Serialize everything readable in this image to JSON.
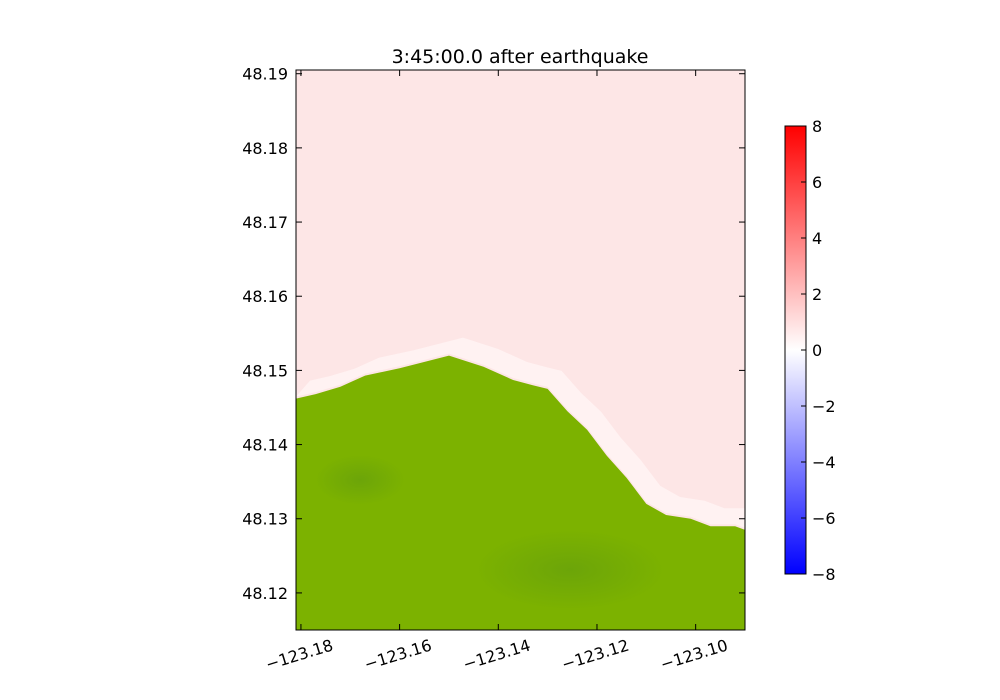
{
  "chart_data": {
    "type": "heatmap",
    "title": "3:45:00.0 after earthquake",
    "xlabel": "",
    "ylabel": "",
    "xlim": [
      -123.181,
      -123.09
    ],
    "ylim": [
      48.115,
      48.1905
    ],
    "x_ticks": [
      -123.18,
      -123.16,
      -123.14,
      -123.12,
      -123.1
    ],
    "x_tick_labels": [
      "−123.18",
      "−123.16",
      "−123.14",
      "−123.12",
      "−123.10"
    ],
    "y_ticks": [
      48.12,
      48.13,
      48.14,
      48.15,
      48.16,
      48.17,
      48.18,
      48.19
    ],
    "y_tick_labels": [
      "48.12",
      "48.13",
      "48.14",
      "48.15",
      "48.16",
      "48.17",
      "48.18",
      "48.19"
    ],
    "colorbar": {
      "min": -8,
      "max": 8,
      "ticks": [
        8,
        6,
        4,
        2,
        0,
        -2,
        -4,
        -6,
        -8
      ],
      "tick_labels": [
        "8",
        "6",
        "4",
        "2",
        "0",
        "−2",
        "−4",
        "−6",
        "−8"
      ],
      "colormap": [
        "#0000ff",
        "#ffffff",
        "#ff0000"
      ]
    },
    "land_color": "#7cb200",
    "land_dark_color": "#5f9a10",
    "water_color": "#fde6e6",
    "coastline": [
      [
        -123.181,
        48.1462
      ],
      [
        -123.177,
        48.1468
      ],
      [
        -123.172,
        48.1478
      ],
      [
        -123.167,
        48.1493
      ],
      [
        -123.16,
        48.1503
      ],
      [
        -123.15,
        48.152
      ],
      [
        -123.143,
        48.1505
      ],
      [
        -123.137,
        48.1487
      ],
      [
        -123.133,
        48.148
      ],
      [
        -123.13,
        48.1475
      ],
      [
        -123.126,
        48.1445
      ],
      [
        -123.122,
        48.142
      ],
      [
        -123.118,
        48.1385
      ],
      [
        -123.114,
        48.1355
      ],
      [
        -123.11,
        48.132
      ],
      [
        -123.106,
        48.1305
      ],
      [
        -123.101,
        48.13
      ],
      [
        -123.097,
        48.129
      ],
      [
        -123.092,
        48.129
      ],
      [
        -123.09,
        48.1285
      ]
    ],
    "grid": false
  }
}
